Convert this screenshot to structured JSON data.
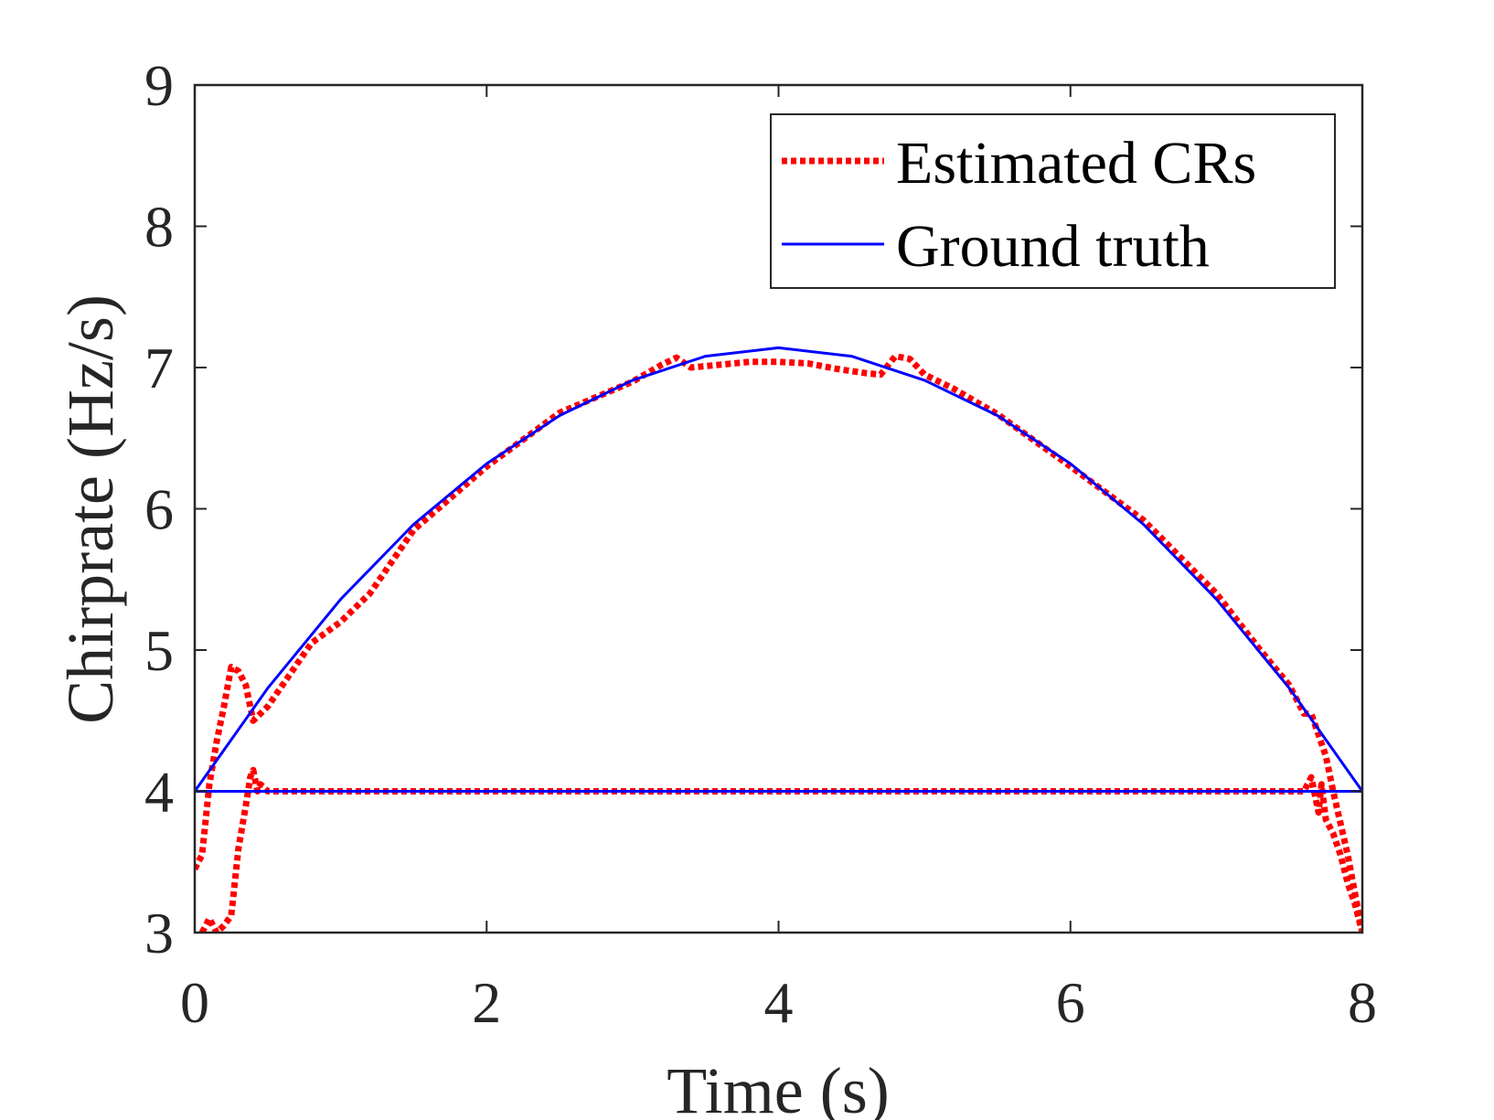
{
  "chart_data": {
    "type": "line",
    "title": "",
    "xlabel": "Time (s)",
    "ylabel": "Chirprate (Hz/s)",
    "xlim": [
      0,
      8
    ],
    "ylim": [
      3,
      9
    ],
    "xticks": [
      0,
      2,
      4,
      6,
      8
    ],
    "yticks": [
      3,
      4,
      5,
      6,
      7,
      8,
      9
    ],
    "xtick_labels": [
      "0",
      "2",
      "4",
      "6",
      "8"
    ],
    "ytick_labels": [
      "3",
      "4",
      "5",
      "6",
      "7",
      "8",
      "9"
    ],
    "grid": false,
    "legend_position": "top-right",
    "legend": [
      {
        "label": "Estimated CRs",
        "style": "dotted",
        "color": "#ff0000"
      },
      {
        "label": "Ground truth",
        "style": "solid",
        "color": "#0000ff"
      }
    ],
    "series": [
      {
        "name": "Ground truth (upper chirp)",
        "legend": "Ground truth",
        "style": "solid",
        "color": "#0000ff",
        "x": [
          0,
          0.5,
          1,
          1.5,
          2,
          2.5,
          3,
          3.5,
          4,
          4.5,
          5,
          5.5,
          6,
          6.5,
          7,
          7.5,
          8
        ],
        "y": [
          4.0,
          4.73,
          5.36,
          5.89,
          6.32,
          6.66,
          6.91,
          7.08,
          7.14,
          7.08,
          6.91,
          6.66,
          6.32,
          5.89,
          5.36,
          4.73,
          4.0
        ]
      },
      {
        "name": "Ground truth (constant)",
        "legend": "Ground truth",
        "style": "solid",
        "color": "#0000ff",
        "x": [
          0,
          8
        ],
        "y": [
          4.0,
          4.0
        ]
      },
      {
        "name": "Estimated CRs (upper chirp)",
        "legend": "Estimated CRs",
        "style": "dotted",
        "color": "#ff0000",
        "x": [
          0,
          0.05,
          0.1,
          0.15,
          0.2,
          0.25,
          0.3,
          0.35,
          0.4,
          0.5,
          0.7,
          0.8,
          1.0,
          1.2,
          1.5,
          2.0,
          2.5,
          3.0,
          3.2,
          3.3,
          3.4,
          3.6,
          3.8,
          4.0,
          4.2,
          4.4,
          4.6,
          4.7,
          4.8,
          4.9,
          5.0,
          5.2,
          5.5,
          6.0,
          6.5,
          7.0,
          7.3,
          7.5,
          7.6,
          7.65,
          7.7,
          7.75,
          7.8,
          7.9,
          8.0
        ],
        "y": [
          3.45,
          3.55,
          4.05,
          4.35,
          4.6,
          4.88,
          4.85,
          4.75,
          4.5,
          4.6,
          4.9,
          5.05,
          5.2,
          5.4,
          5.85,
          6.3,
          6.68,
          6.9,
          7.02,
          7.07,
          7.0,
          7.02,
          7.04,
          7.04,
          7.03,
          6.99,
          6.96,
          6.95,
          7.08,
          7.06,
          6.95,
          6.85,
          6.67,
          6.3,
          5.92,
          5.4,
          5.0,
          4.75,
          4.55,
          4.55,
          4.4,
          4.25,
          4.0,
          3.55,
          3.0
        ]
      },
      {
        "name": "Estimated CRs (constant)",
        "legend": "Estimated CRs",
        "style": "dotted",
        "color": "#ff0000",
        "x": [
          0.05,
          0.1,
          0.15,
          0.2,
          0.25,
          0.3,
          0.35,
          0.38,
          0.4,
          0.43,
          0.45,
          0.5,
          1.0,
          2.0,
          4.0,
          6.0,
          7.5,
          7.6,
          7.65,
          7.7,
          7.72,
          7.75,
          7.8,
          7.85,
          7.9,
          7.95,
          8.0
        ],
        "y": [
          3.0,
          3.1,
          3.0,
          3.05,
          3.12,
          3.6,
          3.9,
          4.1,
          4.15,
          4.0,
          4.05,
          4.0,
          4.0,
          4.0,
          4.0,
          4.0,
          4.0,
          4.0,
          4.1,
          3.85,
          4.05,
          3.8,
          3.7,
          3.55,
          3.35,
          3.2,
          3.0
        ]
      }
    ]
  }
}
